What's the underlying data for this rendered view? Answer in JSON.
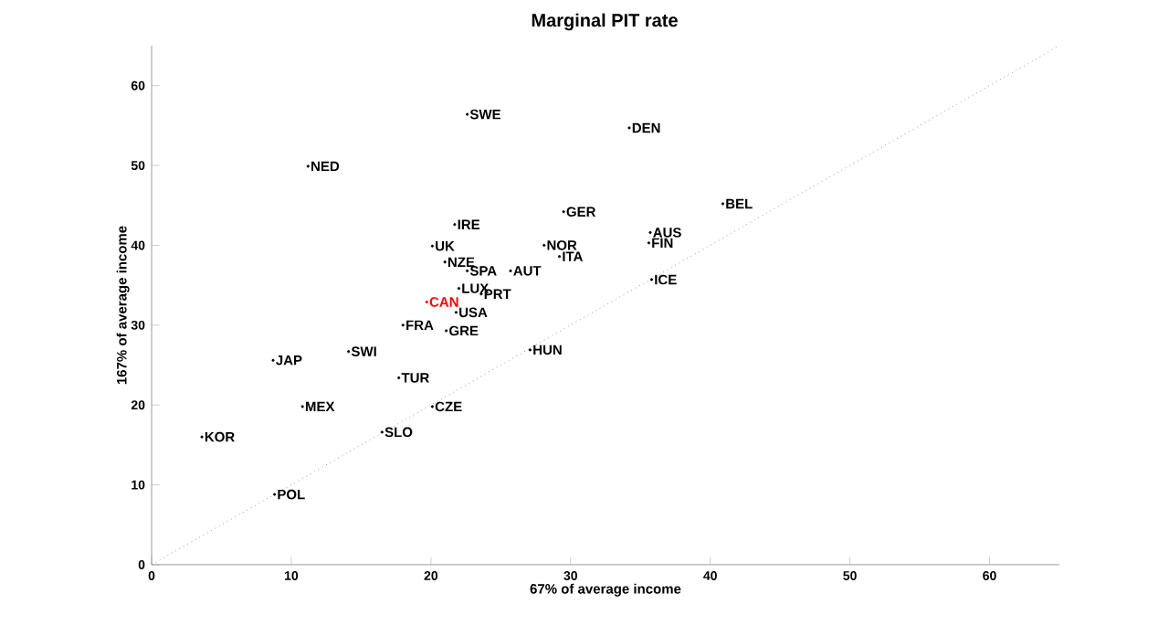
{
  "chart_data": {
    "type": "scatter",
    "title": "Marginal PIT rate",
    "xlabel": "67% of average income",
    "ylabel": "167% of average income",
    "xlim": [
      0,
      65
    ],
    "ylim": [
      0,
      65
    ],
    "xticks": [
      0,
      10,
      20,
      30,
      40,
      50,
      60
    ],
    "yticks": [
      0,
      10,
      20,
      30,
      40,
      50,
      60
    ],
    "marker": "circle",
    "series": [
      {
        "type": "line",
        "color": "#999999",
        "line_style": "dotted",
        "marker": "none",
        "x": [
          0,
          65
        ],
        "values": [
          0,
          65
        ]
      },
      {
        "name": "SWE",
        "color": "#000000",
        "x": [
          22.6
        ],
        "values": [
          56.4
        ]
      },
      {
        "name": "DEN",
        "color": "#000000",
        "x": [
          34.2
        ],
        "values": [
          54.7
        ]
      },
      {
        "name": "NED",
        "color": "#000000",
        "x": [
          11.2
        ],
        "values": [
          49.9
        ]
      },
      {
        "name": "IRE",
        "color": "#000000",
        "x": [
          21.7
        ],
        "values": [
          42.6
        ]
      },
      {
        "name": "GER",
        "color": "#000000",
        "x": [
          29.5
        ],
        "values": [
          44.2
        ]
      },
      {
        "name": "UK",
        "color": "#000000",
        "x": [
          20.1
        ],
        "values": [
          39.9
        ]
      },
      {
        "name": "NOR",
        "color": "#000000",
        "x": [
          28.1
        ],
        "values": [
          40.0
        ]
      },
      {
        "name": "ITA",
        "color": "#000000",
        "x": [
          29.2
        ],
        "values": [
          38.6
        ]
      },
      {
        "name": "NZE",
        "color": "#000000",
        "x": [
          21.0
        ],
        "values": [
          37.9
        ]
      },
      {
        "name": "SPA",
        "color": "#000000",
        "x": [
          22.6
        ],
        "values": [
          36.8
        ]
      },
      {
        "name": "AUT",
        "color": "#000000",
        "x": [
          25.7
        ],
        "values": [
          36.8
        ]
      },
      {
        "name": "LUX",
        "color": "#000000",
        "x": [
          22.0
        ],
        "values": [
          34.6
        ]
      },
      {
        "name": "PRT",
        "color": "#000000",
        "x": [
          23.6
        ],
        "values": [
          33.9
        ]
      },
      {
        "name": "CAN",
        "color": "#ff0000",
        "x": [
          19.7
        ],
        "values": [
          32.9
        ]
      },
      {
        "name": "USA",
        "color": "#000000",
        "x": [
          21.8
        ],
        "values": [
          31.6
        ]
      },
      {
        "name": "FRA",
        "color": "#000000",
        "x": [
          18.0
        ],
        "values": [
          30.0
        ]
      },
      {
        "name": "GRE",
        "color": "#000000",
        "x": [
          21.1
        ],
        "values": [
          29.3
        ]
      },
      {
        "name": "BEL",
        "color": "#000000",
        "x": [
          40.9
        ],
        "values": [
          45.2
        ]
      },
      {
        "name": "AUS",
        "color": "#000000",
        "x": [
          35.7
        ],
        "values": [
          41.6
        ]
      },
      {
        "name": "FIN",
        "color": "#000000",
        "x": [
          35.6
        ],
        "values": [
          40.3
        ]
      },
      {
        "name": "ICE",
        "color": "#000000",
        "x": [
          35.8
        ],
        "values": [
          35.7
        ]
      },
      {
        "name": "JAP",
        "color": "#000000",
        "x": [
          8.7
        ],
        "values": [
          25.6
        ]
      },
      {
        "name": "SWI",
        "color": "#000000",
        "x": [
          14.1
        ],
        "values": [
          26.7
        ]
      },
      {
        "name": "TUR",
        "color": "#000000",
        "x": [
          17.7
        ],
        "values": [
          23.4
        ]
      },
      {
        "name": "HUN",
        "color": "#000000",
        "x": [
          27.1
        ],
        "values": [
          26.9
        ]
      },
      {
        "name": "MEX",
        "color": "#000000",
        "x": [
          10.8
        ],
        "values": [
          19.8
        ]
      },
      {
        "name": "CZE",
        "color": "#000000",
        "x": [
          20.1
        ],
        "values": [
          19.8
        ]
      },
      {
        "name": "KOR",
        "color": "#000000",
        "x": [
          3.6
        ],
        "values": [
          16.0
        ]
      },
      {
        "name": "SLO",
        "color": "#000000",
        "x": [
          16.5
        ],
        "values": [
          16.6
        ]
      },
      {
        "name": "POL",
        "color": "#000000",
        "x": [
          8.8
        ],
        "values": [
          8.8
        ]
      }
    ]
  }
}
